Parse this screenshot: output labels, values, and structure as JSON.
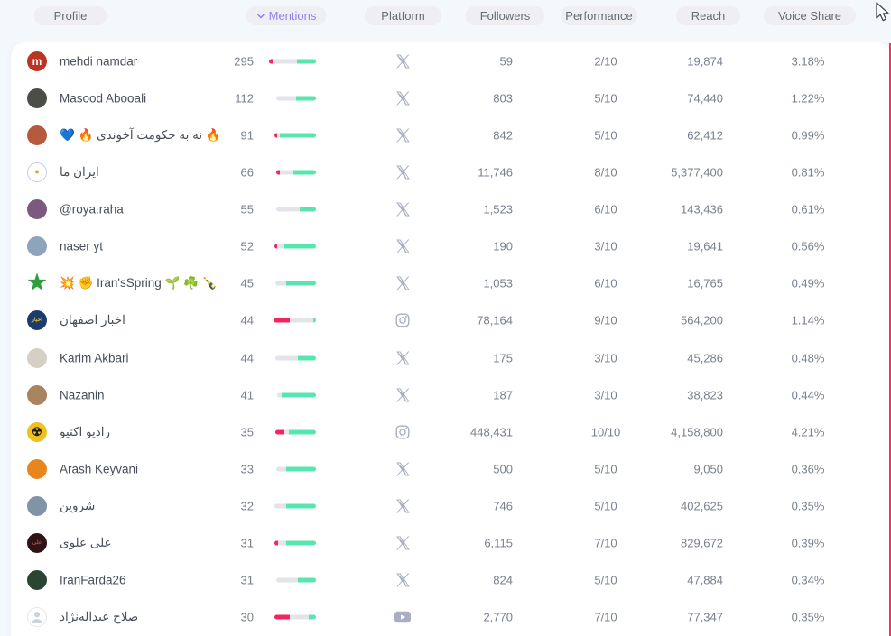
{
  "colors": {
    "page_bg": "#f4f7fb",
    "card_bg": "#ffffff",
    "header_pill_bg": "#efeff3",
    "header_text": "#636b76",
    "sorted_header_text": "#8e80f0",
    "name_text": "#474e5a",
    "value_text": "#78808e",
    "platform_icon": "#a9aec4",
    "spark_red": "#f2255e",
    "spark_gray": "#e2e4e9",
    "spark_green": "#57e7ae",
    "edge_accent": "#f2355b"
  },
  "header": {
    "columns": [
      {
        "id": "profile",
        "label": "Profile",
        "sorted": false
      },
      {
        "id": "mentions",
        "label": "Mentions",
        "sorted": true
      },
      {
        "id": "platform",
        "label": "Platform",
        "sorted": false
      },
      {
        "id": "followers",
        "label": "Followers",
        "sorted": false
      },
      {
        "id": "performance",
        "label": "Performance",
        "sorted": false
      },
      {
        "id": "reach",
        "label": "Reach",
        "sorted": false
      },
      {
        "id": "voice_share",
        "label": "Voice Share",
        "sorted": false
      }
    ]
  },
  "rows": [
    {
      "name": "mehdi namdar",
      "rtl": false,
      "avatar": {
        "bg": "#b93625",
        "glyph": "m",
        "fg": "#ffffff",
        "size": 12
      },
      "mentions": "295",
      "spark": [
        [
          "r",
          4
        ],
        [
          "n",
          27
        ],
        [
          "g",
          21
        ]
      ],
      "platform": "x",
      "followers": "59",
      "performance": "2/10",
      "reach": "19,874",
      "voice_share": "3.18%"
    },
    {
      "name": "Masood Abooali",
      "rtl": false,
      "avatar": {
        "bg": "#4b4e46"
      },
      "mentions": "112",
      "spark": [
        [
          "n",
          22
        ],
        [
          "g",
          22
        ]
      ],
      "platform": "x",
      "followers": "803",
      "performance": "5/10",
      "reach": "74,440",
      "voice_share": "1.22%"
    },
    {
      "name": "🔥 نه به حکومت آخوندی 🔥 💙",
      "rtl": true,
      "avatar": {
        "bg": "#b65a3e"
      },
      "mentions": "91",
      "spark": [
        [
          "r",
          3
        ],
        [
          "n",
          3
        ],
        [
          "g",
          40
        ]
      ],
      "platform": "x",
      "followers": "842",
      "performance": "5/10",
      "reach": "62,412",
      "voice_share": "0.99%"
    },
    {
      "name": "ایران ما",
      "rtl": true,
      "avatar": {
        "bg": "#ffffff",
        "border": "#c3cdea",
        "glyph": "●",
        "fg": "#d9a826",
        "size": 9
      },
      "mentions": "66",
      "spark": [
        [
          "r",
          4
        ],
        [
          "n",
          15
        ],
        [
          "g",
          25
        ]
      ],
      "platform": "x",
      "followers": "11,746",
      "performance": "8/10",
      "reach": "5,377,400",
      "voice_share": "0.81%"
    },
    {
      "name": "@roya.raha",
      "rtl": false,
      "avatar": {
        "bg": "#7c5a80"
      },
      "mentions": "55",
      "spark": [
        [
          "n",
          26
        ],
        [
          "g",
          18
        ]
      ],
      "platform": "x",
      "followers": "1,523",
      "performance": "6/10",
      "reach": "143,436",
      "voice_share": "0.61%"
    },
    {
      "name": "naser yt",
      "rtl": false,
      "avatar": {
        "bg": "#8da4bb"
      },
      "mentions": "52",
      "spark": [
        [
          "r",
          3
        ],
        [
          "n",
          8
        ],
        [
          "g",
          35
        ]
      ],
      "platform": "x",
      "followers": "190",
      "performance": "3/10",
      "reach": "19,641",
      "voice_share": "0.56%"
    },
    {
      "name": "💥 ✊ Iran'sSpring 🌱 ☘️ 🍾",
      "rtl": false,
      "avatar": {
        "bg": "#ffffff",
        "glyph": "★",
        "fg": "#2da03c",
        "size": 24
      },
      "mentions": "45",
      "spark": [
        [
          "n",
          12
        ],
        [
          "g",
          33
        ]
      ],
      "platform": "x",
      "followers": "1,053",
      "performance": "6/10",
      "reach": "16,765",
      "voice_share": "0.49%"
    },
    {
      "name": "اخبار اصفهان",
      "rtl": true,
      "avatar": {
        "bg": "#1c3c6e",
        "glyph": "اخبار",
        "fg": "#f3c515",
        "size": 6
      },
      "mentions": "44",
      "spark": [
        [
          "r",
          18
        ],
        [
          "n",
          26
        ],
        [
          "g",
          3
        ]
      ],
      "platform": "instagram",
      "followers": "78,164",
      "performance": "9/10",
      "reach": "564,200",
      "voice_share": "1.14%"
    },
    {
      "name": "Karim Akbari",
      "rtl": false,
      "avatar": {
        "bg": "#d6cfc6"
      },
      "mentions": "44",
      "spark": [
        [
          "n",
          25
        ],
        [
          "g",
          20
        ]
      ],
      "platform": "x",
      "followers": "175",
      "performance": "3/10",
      "reach": "45,286",
      "voice_share": "0.48%"
    },
    {
      "name": "Nazanin",
      "rtl": false,
      "avatar": {
        "bg": "#a8845f"
      },
      "mentions": "41",
      "spark": [
        [
          "n",
          5
        ],
        [
          "g",
          38
        ]
      ],
      "platform": "x",
      "followers": "187",
      "performance": "3/10",
      "reach": "38,823",
      "voice_share": "0.44%"
    },
    {
      "name": "رادیو اکتیو",
      "rtl": true,
      "avatar": {
        "bg": "#f0c11d",
        "glyph": "☢",
        "fg": "#1f1f1f",
        "size": 13
      },
      "mentions": "35",
      "spark": [
        [
          "r",
          10
        ],
        [
          "n",
          5
        ],
        [
          "g",
          30
        ]
      ],
      "platform": "instagram",
      "followers": "448,431",
      "performance": "10/10",
      "reach": "4,158,800",
      "voice_share": "4.21%"
    },
    {
      "name": "Arash Keyvani",
      "rtl": false,
      "avatar": {
        "bg": "#e8861e"
      },
      "mentions": "33",
      "spark": [
        [
          "n",
          11
        ],
        [
          "g",
          33
        ]
      ],
      "platform": "x",
      "followers": "500",
      "performance": "5/10",
      "reach": "9,050",
      "voice_share": "0.36%"
    },
    {
      "name": "شروین",
      "rtl": true,
      "avatar": {
        "bg": "#7f94a6"
      },
      "mentions": "32",
      "spark": [
        [
          "n",
          13
        ],
        [
          "g",
          33
        ]
      ],
      "platform": "x",
      "followers": "746",
      "performance": "5/10",
      "reach": "402,625",
      "voice_share": "0.35%"
    },
    {
      "name": "علی علوی",
      "rtl": true,
      "avatar": {
        "bg": "#2f1415",
        "glyph": "علی",
        "fg": "#b04a4a",
        "size": 6
      },
      "mentions": "31",
      "spark": [
        [
          "r",
          4
        ],
        [
          "n",
          9
        ],
        [
          "g",
          33
        ]
      ],
      "platform": "x",
      "followers": "6,115",
      "performance": "7/10",
      "reach": "829,672",
      "voice_share": "0.39%"
    },
    {
      "name": "IranFarda26",
      "rtl": false,
      "avatar": {
        "bg": "#2b4533"
      },
      "mentions": "31",
      "spark": [
        [
          "n",
          24
        ],
        [
          "g",
          20
        ]
      ],
      "platform": "x",
      "followers": "824",
      "performance": "5/10",
      "reach": "47,884",
      "voice_share": "0.34%"
    },
    {
      "name": "صلاح عبداله‌نژاد",
      "rtl": true,
      "avatar": {
        "bg": "#ffffff",
        "border": "#e1e6ed",
        "person": true
      },
      "mentions": "30",
      "spark": [
        [
          "r",
          17
        ],
        [
          "n",
          21
        ],
        [
          "g",
          8
        ]
      ],
      "platform": "youtube",
      "followers": "2,770",
      "performance": "7/10",
      "reach": "77,347",
      "voice_share": "0.35%"
    }
  ]
}
